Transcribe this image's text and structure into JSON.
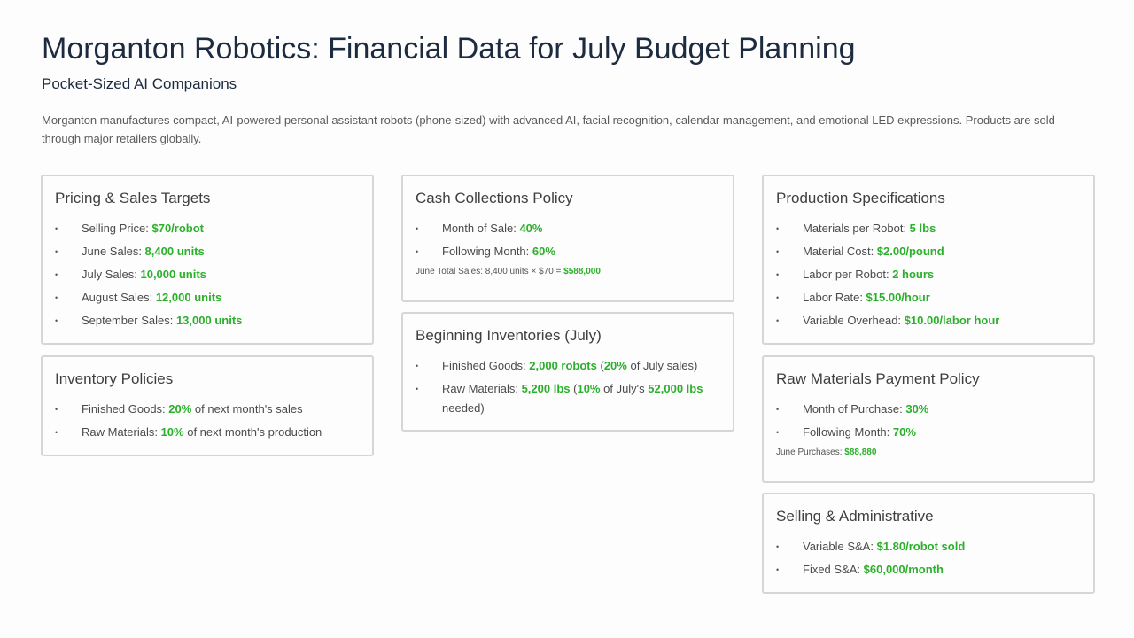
{
  "header": {
    "title": "Morganton Robotics: Financial Data for July Budget Planning",
    "subtitle": "Pocket-Sized AI Companions",
    "description": "Morganton manufactures compact, AI-powered personal assistant robots (phone-sized) with advanced AI, facial recognition, calendar management, and emotional LED expressions. Products are sold through major retailers globally."
  },
  "pricing": {
    "title": "Pricing & Sales Targets",
    "items": [
      {
        "label": "Selling Price: ",
        "value": "$70/robot"
      },
      {
        "label": "June Sales: ",
        "value": "8,400 units"
      },
      {
        "label": "July Sales: ",
        "value": "10,000 units"
      },
      {
        "label": "August Sales: ",
        "value": "12,000 units"
      },
      {
        "label": "September Sales: ",
        "value": "13,000 units"
      }
    ]
  },
  "inventory_policies": {
    "title": "Inventory Policies",
    "items": [
      {
        "label": "Finished Goods: ",
        "value": "20%",
        "suffix": " of next month's sales"
      },
      {
        "label": "Raw Materials: ",
        "value": "10%",
        "suffix": " of next month's production"
      }
    ]
  },
  "cash_collections": {
    "title": "Cash Collections Policy",
    "items": [
      {
        "label": "Month of Sale: ",
        "value": "40%"
      },
      {
        "label": "Following Month: ",
        "value": "60%"
      }
    ],
    "note_label": "June Total Sales: 8,400 units × $70 = ",
    "note_value": "$588,000"
  },
  "beginning_inventories": {
    "title": "Beginning Inventories (July)",
    "fg_label": "Finished Goods: ",
    "fg_value": "2,000 robots",
    "fg_mid": " (",
    "fg_pct": "20%",
    "fg_suffix": " of July sales)",
    "rm_label": "Raw Materials: ",
    "rm_value": "5,200 lbs",
    "rm_mid": " (",
    "rm_pct": "10%",
    "rm_mid2": " of July's ",
    "rm_total": "52,000 lbs",
    "rm_suffix": " needed)"
  },
  "production": {
    "title": "Production Specifications",
    "items": [
      {
        "label": "Materials per Robot: ",
        "value": "5 lbs"
      },
      {
        "label": "Material Cost: ",
        "value": "$2.00/pound"
      },
      {
        "label": "Labor per Robot: ",
        "value": "2 hours"
      },
      {
        "label": "Labor Rate: ",
        "value": "$15.00/hour"
      },
      {
        "label": "Variable Overhead: ",
        "value": "$10.00/labor hour"
      }
    ]
  },
  "raw_payment": {
    "title": "Raw Materials Payment Policy",
    "items": [
      {
        "label": "Month of Purchase: ",
        "value": "30%"
      },
      {
        "label": "Following Month: ",
        "value": "70%"
      }
    ],
    "note_label": "June Purchases: ",
    "note_value": "$88,880"
  },
  "selling_admin": {
    "title": "Selling & Administrative",
    "items": [
      {
        "label": "Variable S&A: ",
        "value": "$1.80/robot sold"
      },
      {
        "label": "Fixed S&A: ",
        "value": "$60,000/month"
      }
    ]
  },
  "colors": {
    "title": "#1d2b40",
    "highlight": "#2bb02b",
    "border": "#d6d6d6"
  },
  "bullet_glyph": "•"
}
